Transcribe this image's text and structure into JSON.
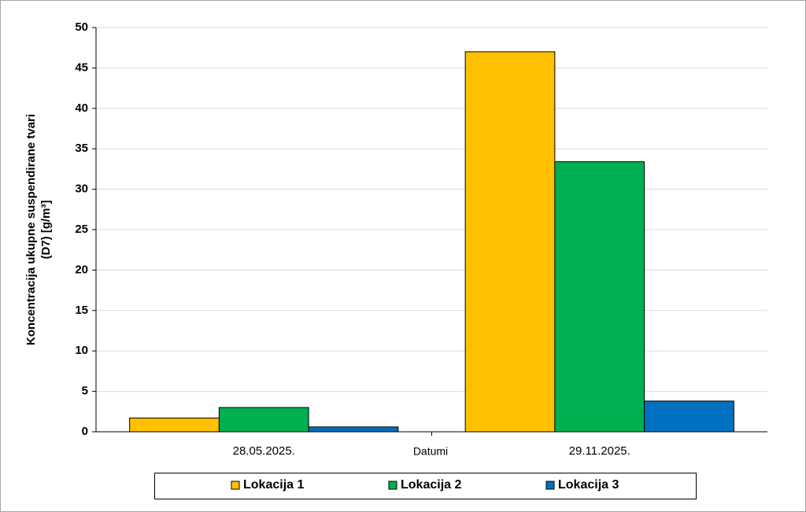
{
  "chart_data": {
    "type": "bar",
    "ylabel": [
      "Koncentracija ukupne suspendirane tvari",
      "(D7) [g/m³]"
    ],
    "xlabel": "Datumi",
    "categories": [
      "28.05.2025.",
      "29.11.2025."
    ],
    "series": [
      {
        "name": "Lokacija 1",
        "color": "#ffc000",
        "values": [
          1.7,
          47.0
        ]
      },
      {
        "name": "Lokacija 2",
        "color": "#00b050",
        "values": [
          3.0,
          33.4
        ]
      },
      {
        "name": "Lokacija 3",
        "color": "#0070c0",
        "values": [
          0.6,
          3.8
        ]
      }
    ],
    "ylim": [
      0,
      50
    ],
    "yticks": [
      0,
      5,
      10,
      15,
      20,
      25,
      30,
      35,
      40,
      45,
      50
    ],
    "grid": true,
    "legend": "bottom"
  }
}
